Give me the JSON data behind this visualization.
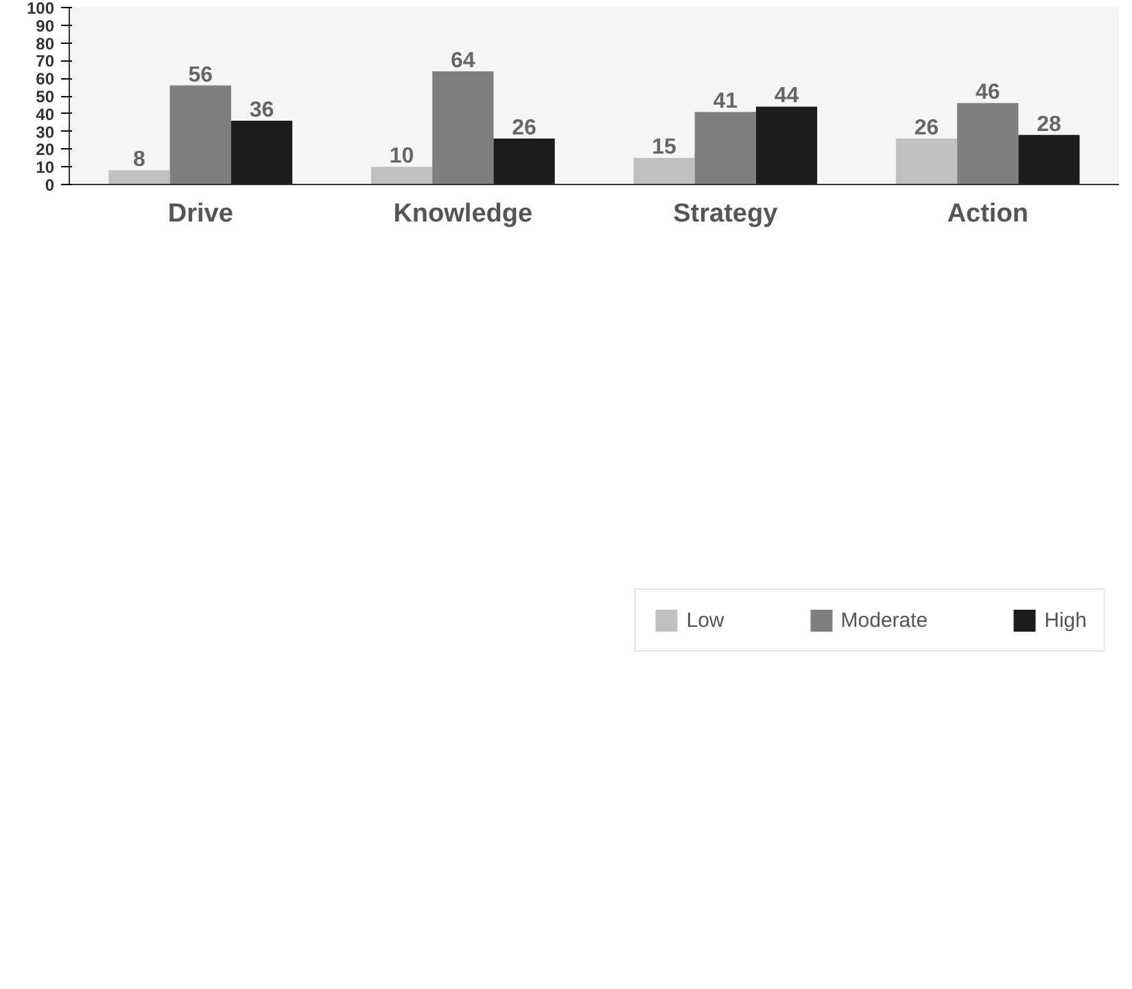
{
  "chart_data": {
    "type": "bar",
    "categories": [
      "Drive",
      "Knowledge",
      "Strategy",
      "Action"
    ],
    "series": [
      {
        "name": "Low",
        "color": "#c0c0c0",
        "values": [
          8,
          10,
          15,
          26
        ]
      },
      {
        "name": "Moderate",
        "color": "#7f7f7f",
        "values": [
          56,
          64,
          41,
          46
        ]
      },
      {
        "name": "High",
        "color": "#1c1c1c",
        "values": [
          36,
          26,
          44,
          28
        ]
      }
    ],
    "ylim": [
      0,
      100
    ],
    "yticks": [
      0,
      10,
      20,
      30,
      40,
      50,
      60,
      70,
      80,
      90,
      100
    ],
    "data_labels": true,
    "legend": "bottom",
    "grid": false
  }
}
